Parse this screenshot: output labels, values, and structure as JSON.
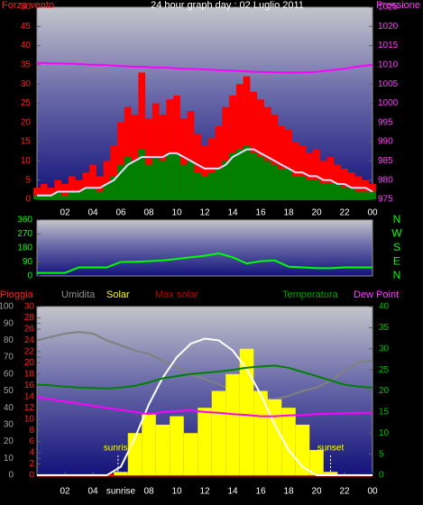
{
  "chart_data": [
    {
      "type": "line",
      "title": "24 hour graph day : 02 Luglio 2011",
      "ylabel": "Forza vento",
      "y2label": "Pressione",
      "x": [
        0,
        0.5,
        1,
        1.5,
        2,
        2.5,
        3,
        3.5,
        4,
        4.5,
        5,
        5.5,
        6,
        6.5,
        7,
        7.5,
        8,
        8.5,
        9,
        9.5,
        10,
        10.5,
        11,
        11.5,
        12,
        12.5,
        13,
        13.5,
        14,
        14.5,
        15,
        15.5,
        16,
        16.5,
        17,
        17.5,
        18,
        18.5,
        19,
        19.5,
        20,
        20.5,
        21,
        21.5,
        22,
        22.5,
        23,
        23.5,
        24
      ],
      "xlim": [
        0,
        24
      ],
      "xticks": [
        {
          "value": 2,
          "label": "02"
        },
        {
          "value": 4,
          "label": "04"
        },
        {
          "value": 6,
          "label": "06"
        },
        {
          "value": 8,
          "label": "08"
        },
        10,
        12,
        14,
        16,
        18,
        20,
        22,
        {
          "value": 24,
          "label": "00"
        }
      ],
      "ylim": [
        0,
        50
      ],
      "yticks": [
        0,
        5,
        10,
        15,
        20,
        25,
        30,
        35,
        40,
        45,
        50
      ],
      "y2lim": [
        975,
        1025
      ],
      "y2ticks": [
        975,
        980,
        985,
        990,
        995,
        1000,
        1005,
        1010,
        1015,
        1020,
        1025
      ],
      "series": [
        {
          "color": "#ff0000",
          "mark": "bar",
          "values": [
            3,
            4,
            3,
            5,
            4,
            6,
            5,
            7,
            9,
            6,
            10,
            14,
            20,
            24,
            22,
            33,
            21,
            25,
            22,
            26,
            27,
            21,
            23,
            17,
            14,
            16,
            19,
            24,
            27,
            30,
            32,
            28,
            26,
            24,
            22,
            19,
            18,
            15,
            14,
            12,
            13,
            10,
            11,
            9,
            8,
            7,
            6,
            5,
            4
          ]
        },
        {
          "color": "#008000",
          "mark": "bar",
          "values": [
            1,
            1,
            1,
            2,
            1,
            2,
            2,
            3,
            3,
            2,
            4,
            6,
            9,
            11,
            10,
            13,
            9,
            11,
            10,
            12,
            12,
            9,
            10,
            7,
            6,
            7,
            8,
            10,
            12,
            13,
            14,
            12,
            11,
            10,
            9,
            8,
            8,
            6,
            6,
            5,
            5,
            4,
            4,
            4,
            3,
            3,
            2,
            2,
            2
          ]
        },
        {
          "color": "#e0e0ff",
          "mark": "line",
          "values": [
            1,
            1,
            1,
            2,
            2,
            2,
            2,
            3,
            3,
            3,
            4,
            5,
            7,
            9,
            10,
            11,
            11,
            11,
            11,
            12,
            12,
            11,
            10,
            9,
            8,
            8,
            8,
            9,
            11,
            12,
            13,
            13,
            12,
            11,
            10,
            9,
            8,
            7,
            7,
            6,
            6,
            5,
            5,
            4,
            4,
            3,
            3,
            3,
            2
          ]
        },
        {
          "color": "#ff00ff",
          "mark": "line",
          "axis": "y2",
          "values": [
            1010.5,
            1010.5,
            1010.4,
            1010.4,
            1010.3,
            1010.3,
            1010.2,
            1010.1,
            1010,
            1010,
            1009.9,
            1009.8,
            1009.7,
            1009.6,
            1009.5,
            1009.5,
            1009.4,
            1009.3,
            1009.3,
            1009.2,
            1009.1,
            1009,
            1009,
            1008.9,
            1008.8,
            1008.7,
            1008.6,
            1008.5,
            1008.5,
            1008.4,
            1008.3,
            1008.2,
            1008.2,
            1008.1,
            1008.1,
            1008,
            1008,
            1008,
            1008,
            1008.1,
            1008.2,
            1008.4,
            1008.6,
            1008.8,
            1009,
            1009.3,
            1009.6,
            1009.8,
            1010
          ]
        }
      ]
    },
    {
      "type": "line",
      "x": [
        0,
        1,
        2,
        3,
        4,
        5,
        6,
        7,
        8,
        9,
        10,
        11,
        12,
        13,
        14,
        15,
        16,
        17,
        18,
        19,
        20,
        21,
        22,
        23,
        24
      ],
      "xlim": [
        0,
        24
      ],
      "ylim": [
        0,
        360
      ],
      "yticks": [
        0,
        90,
        180,
        270,
        360
      ],
      "y2lim": [
        0,
        360
      ],
      "y2ticks": [
        {
          "value": 360,
          "label": "N"
        },
        {
          "value": 270,
          "label": "W"
        },
        {
          "value": 180,
          "label": "S"
        },
        {
          "value": 90,
          "label": "E"
        },
        {
          "value": 0,
          "label": "N"
        }
      ],
      "series": [
        {
          "color": "#00ff00",
          "mark": "line",
          "values": [
            20,
            20,
            20,
            55,
            55,
            55,
            90,
            92,
            95,
            100,
            110,
            120,
            130,
            145,
            120,
            80,
            95,
            100,
            60,
            55,
            50,
            50,
            55,
            55,
            55
          ]
        }
      ]
    },
    {
      "type": "line",
      "x": [
        0,
        1,
        2,
        3,
        4,
        5,
        6,
        7,
        8,
        9,
        10,
        11,
        12,
        13,
        14,
        15,
        16,
        17,
        18,
        19,
        20,
        21,
        22,
        23,
        24
      ],
      "xlim": [
        0,
        24
      ],
      "xticks": [
        {
          "value": 2,
          "label": "02"
        },
        {
          "value": 4,
          "label": "04"
        },
        {
          "value": 6,
          "label": "sunrise"
        },
        {
          "value": 8,
          "label": "08"
        },
        10,
        12,
        14,
        16,
        18,
        20,
        22,
        {
          "value": 24,
          "label": "00"
        }
      ],
      "ylim": [
        0,
        100
      ],
      "yticks": [
        0,
        10,
        20,
        30,
        40,
        50,
        60,
        70,
        80,
        90,
        100
      ],
      "y2lim": [
        0,
        40
      ],
      "y2ticks": [
        0,
        5,
        10,
        15,
        20,
        25,
        30,
        35,
        40
      ],
      "y3lim": [
        0,
        30
      ],
      "y3ticks": [
        0,
        2,
        4,
        6,
        8,
        10,
        12,
        14,
        16,
        18,
        20,
        22,
        24,
        26,
        28,
        30
      ],
      "annotations": [
        {
          "text": "sunrise",
          "x": 5.8
        },
        {
          "text": "sunset",
          "x": 21
        }
      ],
      "series": [
        {
          "name": "Pioggia",
          "color": "#ff0000",
          "mark": "line",
          "axis": "y3",
          "values": [
            0,
            0,
            0,
            0,
            0,
            0,
            0,
            0,
            0,
            0,
            0,
            0,
            0,
            0,
            0,
            0,
            0,
            0,
            0,
            0,
            0,
            0,
            0,
            0,
            0
          ]
        },
        {
          "name": "Umidita",
          "color": "#808080",
          "mark": "line",
          "values": [
            80,
            82,
            84,
            85,
            84,
            80,
            77,
            74,
            72,
            68,
            64,
            60,
            57,
            54,
            50,
            48,
            46,
            45,
            47,
            50,
            52,
            56,
            62,
            67,
            68
          ]
        },
        {
          "name": "Solar",
          "color": "#ffff00",
          "mark": "bar",
          "values": [
            0,
            0,
            0,
            0,
            0,
            0,
            2,
            25,
            36,
            30,
            35,
            25,
            40,
            50,
            60,
            75,
            50,
            45,
            40,
            30,
            15,
            2,
            0,
            0,
            0
          ]
        },
        {
          "name": "Max solar",
          "color": "#ffffff",
          "mark": "line",
          "values": [
            0,
            0,
            0,
            0,
            0,
            0,
            5,
            22,
            42,
            58,
            70,
            78,
            81,
            80,
            74,
            63,
            48,
            30,
            15,
            5,
            0,
            0,
            0,
            0,
            0
          ]
        },
        {
          "name": "Temperatura",
          "color": "#008000",
          "mark": "line",
          "axis": "y2",
          "values": [
            21.5,
            21.3,
            21,
            20.8,
            20.7,
            20.6,
            20.8,
            21.2,
            22,
            23,
            23.5,
            24,
            24.3,
            24.6,
            25,
            25.5,
            25.8,
            26,
            25.5,
            24.5,
            23.5,
            22.5,
            21.5,
            21,
            20.8
          ]
        },
        {
          "name": "Dew Point",
          "color": "#ff00ff",
          "mark": "line",
          "axis": "y2",
          "values": [
            18.5,
            18,
            17.5,
            17,
            16.5,
            16,
            15.5,
            15,
            14.5,
            15,
            15.2,
            15.4,
            15,
            14.8,
            14.5,
            14.3,
            14,
            14,
            14.2,
            14.3,
            14.5,
            14.6,
            14.7,
            14.8,
            14.8
          ]
        }
      ]
    }
  ]
}
